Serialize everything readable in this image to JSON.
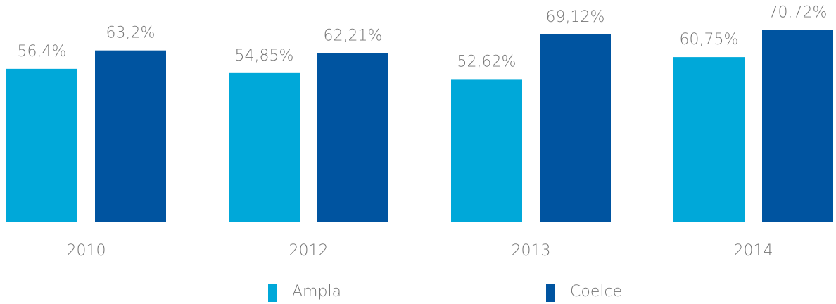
{
  "chart_data": {
    "type": "bar",
    "categories": [
      "2010",
      "2012",
      "2013",
      "2014"
    ],
    "series": [
      {
        "name": "Ampla",
        "color": "#00a8d9",
        "values": [
          56.4,
          54.85,
          52.62,
          60.75
        ],
        "value_labels": [
          "56,4%",
          "54,85%",
          "52,62%",
          "60,75%"
        ]
      },
      {
        "name": "Coelce",
        "color": "#0054a0",
        "values": [
          63.2,
          62.21,
          69.12,
          70.72
        ],
        "value_labels": [
          "63,2%",
          "62,21%",
          "69,12%",
          "70,72%"
        ]
      }
    ]
  }
}
